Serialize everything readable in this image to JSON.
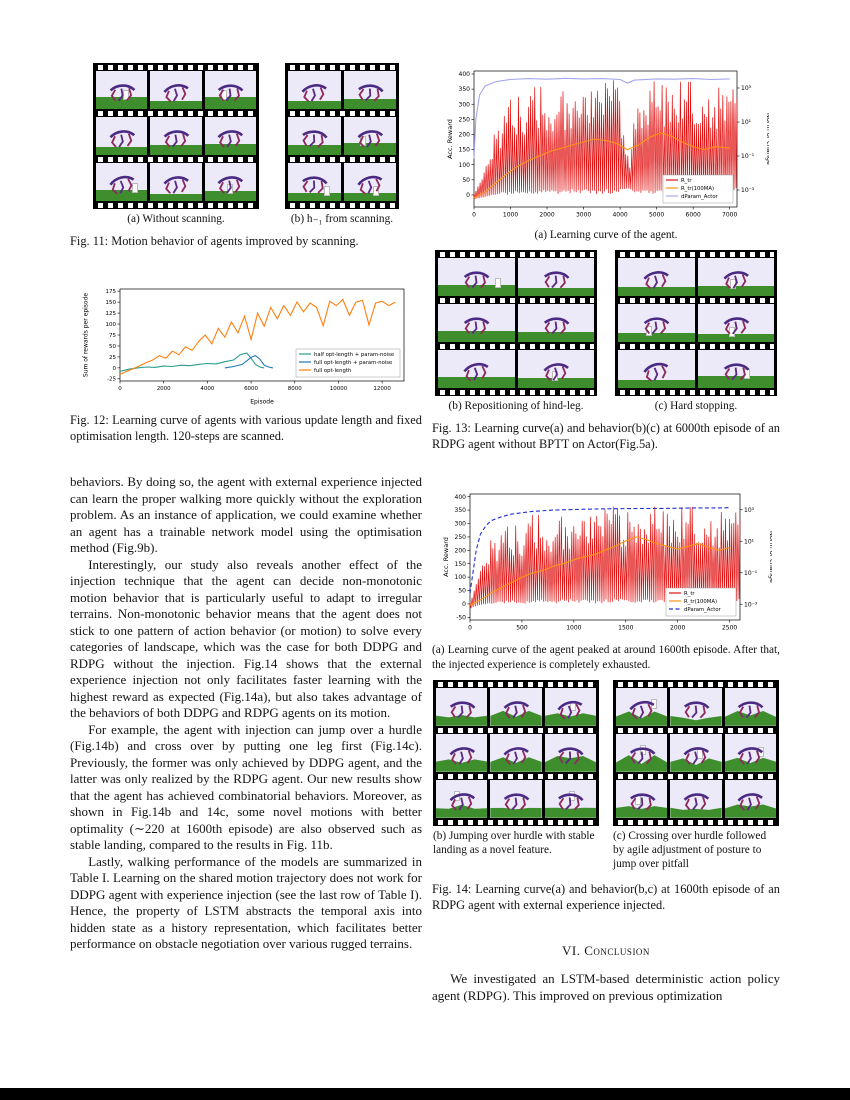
{
  "page": {
    "background": "#ffffff"
  },
  "body": {
    "left_paragraphs": [
      "behaviors. By doing so, the agent with external experience injected can learn the proper walking more quickly without the exploration problem. As an instance of application, we could examine whether an agent has a trainable network model using the optimisation method (Fig.9b).",
      "Interestingly, our study also reveals another effect of the injection technique that the agent can decide non-monotonic motion behavior that is particularly useful to adapt to irregular terrains. Non-monotonic behavior means that the agent does not stick to one pattern of action behavior (or motion) to solve every categories of landscape, which was the case for both DDPG and RDPG without the injection. Fig.14 shows that the external experience injection not only facilitates faster learning with the highest reward as expected (Fig.14a), but also takes advantage of the behaviors of both DDPG and RDPG agents on its motion.",
      "For example, the agent with injection can jump over a hurdle (Fig.14b) and cross over by putting one leg first (Fig.14c). Previously, the former was only achieved by DDPG agent, and the latter was only realized by the RDPG agent. Our new results show that the agent has achieved combinatorial behaviors. Moreover, as shown in Fig.14b and 14c, some novel motions with better optimality (∼220 at 1600th episode) are also observed such as stable landing, compared to the results in Fig. 11b.",
      "Lastly, walking performance of the models are summarized in Table I. Learning on the shared motion trajectory does not work for DDPG agent with experience injection (see the last row of Table I). Hence, the property of LSTM abstracts the temporal axis into hidden state as a history representation, which facilitates better performance on obstacle negotiation over various rugged terrains."
    ],
    "conclusion_heading": "VI. Conclusion",
    "conclusion_text": "We investigated an LSTM-based deterministic action policy agent (RDPG). This improved on previous optimization"
  },
  "figures": {
    "fig11": {
      "caption": "Fig. 11: Motion behavior of agents improved by scanning.",
      "strips": [
        {
          "id": "fig11a",
          "rows": 3,
          "cols": 3,
          "variant": "flat",
          "seed": 1,
          "hurdle_p": 0.35,
          "subcaption": "(a) Without scanning."
        },
        {
          "id": "fig11b",
          "rows": 3,
          "cols": 2,
          "variant": "flat",
          "seed": 2,
          "hurdle_p": 0.3,
          "subcaption": "(b) h₋₁ from scanning."
        }
      ]
    },
    "fig12": {
      "caption": "Fig. 12: Learning curve of agents with various update length and fixed optimisation length. 120-steps are scanned."
    },
    "fig13": {
      "subcaption_a": "(a) Learning curve of the agent.",
      "caption": "Fig. 13: Learning curve(a) and behavior(b)(c) at 6000th episode of an RDPG agent without BPTT on Actor(Fig.5a).",
      "strips": [
        {
          "id": "fig13b",
          "rows": 3,
          "cols": 2,
          "variant": "flat",
          "seed": 3,
          "hurdle_p": 0.4,
          "subcaption": "(b) Repositioning of hind-leg."
        },
        {
          "id": "fig13c",
          "rows": 3,
          "cols": 2,
          "variant": "flat",
          "seed": 4,
          "hurdle_p": 0.4,
          "subcaption": "(c) Hard stopping."
        }
      ]
    },
    "fig14": {
      "subcaption_a": "(a) Learning curve of the agent peaked at around 1600th episode. After that, the injected experience is completely exhausted.",
      "caption": "Fig. 14: Learning curve(a) and behavior(b,c) at 1600th episode of an RDPG agent with external experience injected.",
      "strips": [
        {
          "id": "fig14b",
          "rows": 3,
          "cols": 3,
          "variant": "hills",
          "seed": 5,
          "hurdle_p": 0.5,
          "subcaption": "(b) Jumping over hurdle with stable landing as a novel feature."
        },
        {
          "id": "fig14c",
          "rows": 3,
          "cols": 3,
          "variant": "hills",
          "seed": 6,
          "hurdle_p": 0.5,
          "subcaption": "(c) Crossing over hurdle followed by agile adjustment of posture to jump over pitfall"
        }
      ]
    }
  },
  "chart_data": [
    {
      "id": "fig12",
      "type": "line",
      "title": "",
      "xlabel": "Episode",
      "ylabel": "Sum of rewards per episode",
      "xlim": [
        0,
        13000
      ],
      "ylim": [
        -30,
        180
      ],
      "xticks": [
        0,
        2000,
        4000,
        6000,
        8000,
        10000,
        12000
      ],
      "yticks": [
        -25,
        0,
        25,
        50,
        75,
        100,
        125,
        150,
        175
      ],
      "grid": false,
      "legend_position": "lower-right",
      "series": [
        {
          "name": "half opt-length + param-noise",
          "color": "#2a9d8f",
          "x": [
            0,
            400,
            800,
            1200,
            1600,
            2000,
            2400,
            2800,
            3200,
            3600,
            4000,
            4400,
            4800,
            5200,
            5500,
            5800,
            6000,
            6200,
            6400,
            6600
          ],
          "y": [
            -8,
            -3,
            0,
            2,
            1,
            4,
            3,
            6,
            5,
            8,
            10,
            9,
            14,
            18,
            30,
            34,
            22,
            8,
            2,
            0
          ]
        },
        {
          "name": "full opt-length + param-noise",
          "color": "#1f77b4",
          "x": [
            4800,
            5200,
            5600,
            6000,
            6200,
            6400,
            6600,
            6800,
            7000
          ],
          "y": [
            0,
            3,
            8,
            24,
            28,
            20,
            6,
            2,
            0
          ]
        },
        {
          "name": "full opt-length",
          "color": "#ff7f0e",
          "x": [
            0,
            300,
            600,
            900,
            1200,
            1500,
            1800,
            2100,
            2400,
            2700,
            3000,
            3300,
            3600,
            3900,
            4200,
            4500,
            4800,
            5100,
            5400,
            5700,
            6000,
            6300,
            6600,
            6900,
            7200,
            7500,
            7800,
            8100,
            8400,
            8700,
            9000,
            9300,
            9600,
            9900,
            10200,
            10500,
            10800,
            11100,
            11400,
            11700,
            12000,
            12300,
            12600
          ],
          "y": [
            -15,
            -8,
            -2,
            5,
            12,
            18,
            28,
            22,
            38,
            30,
            48,
            40,
            60,
            75,
            55,
            90,
            70,
            105,
            80,
            118,
            65,
            125,
            95,
            138,
            112,
            142,
            120,
            150,
            128,
            148,
            138,
            96,
            152,
            142,
            156,
            120,
            150,
            154,
            98,
            148,
            152,
            142,
            150
          ]
        }
      ]
    },
    {
      "id": "fig13a",
      "type": "line",
      "title": "",
      "xlabel": "",
      "ylabel": "Acc. Reward",
      "ylabel_right": "Norm of change",
      "xlim": [
        0,
        7200
      ],
      "ylim": [
        -40,
        410
      ],
      "xticks": [
        0,
        1000,
        2000,
        3000,
        4000,
        5000,
        6000,
        7000
      ],
      "yticks": [
        0,
        50,
        100,
        150,
        200,
        250,
        300,
        350,
        400
      ],
      "right_ticks": [
        "10³",
        "10¹",
        "10⁻¹",
        "10⁻³"
      ],
      "grid": false,
      "legend_position": "lower-right",
      "series": [
        {
          "name": "R_tr",
          "color": "#e01010",
          "band": true,
          "x": [
            0,
            200,
            400,
            600,
            800,
            1000,
            1200,
            1500,
            1800,
            2100,
            2400,
            2700,
            3000,
            3300,
            3600,
            3900,
            4100,
            4250,
            4400,
            4700,
            5000,
            5300,
            5600,
            5900,
            6200,
            6500,
            6800,
            7000
          ],
          "yhigh": [
            15,
            60,
            140,
            220,
            280,
            320,
            340,
            360,
            370,
            380,
            375,
            385,
            380,
            390,
            385,
            380,
            300,
            80,
            350,
            380,
            385,
            390,
            380,
            385,
            390,
            380,
            385,
            380
          ],
          "ylow": [
            -15,
            -10,
            -5,
            0,
            0,
            0,
            5,
            5,
            0,
            5,
            0,
            5,
            5,
            0,
            5,
            0,
            10,
            20,
            5,
            0,
            5,
            0,
            5,
            0,
            5,
            0,
            5,
            10
          ]
        },
        {
          "name": "R_tr(100MA)",
          "color": "#ff9413",
          "x": [
            0,
            300,
            600,
            900,
            1200,
            1500,
            1800,
            2100,
            2400,
            2700,
            3000,
            3300,
            3600,
            3900,
            4200,
            4500,
            4800,
            5100,
            5400,
            5700,
            6000,
            6300,
            6600,
            7000
          ],
          "y": [
            -10,
            10,
            40,
            70,
            95,
            115,
            130,
            145,
            155,
            165,
            175,
            185,
            180,
            170,
            150,
            165,
            190,
            205,
            195,
            175,
            160,
            150,
            160,
            155
          ]
        },
        {
          "name": "dParam_Actor",
          "color": "#a6a6f0",
          "x": [
            0,
            50,
            150,
            300,
            600,
            1000,
            1500,
            2000,
            2500,
            3000,
            3500,
            4000,
            4200,
            4400,
            5000,
            5500,
            6000,
            6500,
            7000
          ],
          "y": [
            120,
            250,
            330,
            360,
            375,
            382,
            385,
            383,
            386,
            384,
            385,
            382,
            370,
            380,
            384,
            383,
            385,
            382,
            384
          ]
        }
      ]
    },
    {
      "id": "fig14a",
      "type": "line",
      "title": "",
      "xlabel": "",
      "ylabel": "Acc. Reward",
      "ylabel_right": "Norm of change",
      "xlim": [
        0,
        2600
      ],
      "ylim": [
        -60,
        410
      ],
      "xticks": [
        0,
        500,
        1000,
        1500,
        2000,
        2500
      ],
      "yticks": [
        -50,
        0,
        50,
        100,
        150,
        200,
        250,
        300,
        350,
        400
      ],
      "right_ticks": [
        "10³",
        "10¹",
        "10⁻¹",
        "10⁻³"
      ],
      "grid": false,
      "legend_position": "lower-right",
      "series": [
        {
          "name": "R_tr",
          "color": "#e01010",
          "band": true,
          "x": [
            0,
            50,
            100,
            200,
            300,
            400,
            500,
            600,
            800,
            1000,
            1200,
            1400,
            1600,
            1800,
            2000,
            2200,
            2400,
            2500
          ],
          "yhigh": [
            20,
            80,
            150,
            240,
            280,
            300,
            320,
            340,
            355,
            360,
            370,
            365,
            375,
            370,
            365,
            375,
            370,
            372
          ],
          "ylow": [
            -20,
            -10,
            -5,
            0,
            0,
            5,
            0,
            5,
            0,
            5,
            0,
            5,
            0,
            5,
            0,
            5,
            0,
            5
          ]
        },
        {
          "name": "R_tr(100MA)",
          "color": "#ff9413",
          "x": [
            0,
            100,
            200,
            300,
            400,
            500,
            600,
            700,
            800,
            900,
            1000,
            1100,
            1200,
            1300,
            1400,
            1500,
            1600,
            1700,
            1800,
            1900,
            2000,
            2100,
            2200,
            2300,
            2400,
            2500
          ],
          "y": [
            -5,
            15,
            40,
            60,
            80,
            100,
            115,
            125,
            140,
            150,
            165,
            175,
            185,
            200,
            215,
            235,
            250,
            240,
            225,
            215,
            205,
            215,
            225,
            210,
            200,
            210
          ]
        },
        {
          "name": "dParam_Actor",
          "color": "#2030d0",
          "dash": "4 2.5",
          "x": [
            0,
            30,
            60,
            100,
            150,
            200,
            300,
            400,
            600,
            800,
            1000,
            1200,
            1400,
            1600,
            1800,
            2000,
            2200,
            2400,
            2500
          ],
          "y": [
            40,
            120,
            200,
            260,
            290,
            310,
            325,
            335,
            345,
            350,
            352,
            354,
            355,
            356,
            356,
            357,
            358,
            358,
            359
          ]
        }
      ]
    }
  ]
}
